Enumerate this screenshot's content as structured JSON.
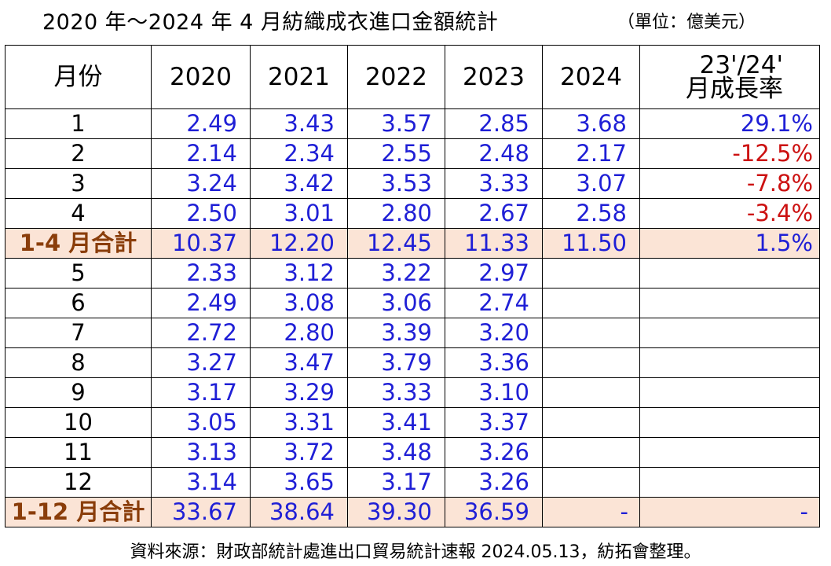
{
  "title": "2020 年～2024 年 4 月紡織成衣進口金額統計",
  "unit": "（單位：億美元）",
  "headers": {
    "month": "月份",
    "years": [
      "2020",
      "2021",
      "2022",
      "2023",
      "2024"
    ],
    "rate_line1": "23'/24'",
    "rate_line2": "月成長率"
  },
  "rows": [
    {
      "month": "1",
      "v": [
        "2.49",
        "3.43",
        "3.57",
        "2.85",
        "3.68"
      ],
      "rate": "29.1%"
    },
    {
      "month": "2",
      "v": [
        "2.14",
        "2.34",
        "2.55",
        "2.48",
        "2.17"
      ],
      "rate": "-12.5%"
    },
    {
      "month": "3",
      "v": [
        "3.24",
        "3.42",
        "3.53",
        "3.33",
        "3.07"
      ],
      "rate": "-7.8%"
    },
    {
      "month": "4",
      "v": [
        "2.50",
        "3.01",
        "2.80",
        "2.67",
        "2.58"
      ],
      "rate": "-3.4%"
    },
    {
      "month": "1-4 月合計",
      "v": [
        "10.37",
        "12.20",
        "12.45",
        "11.33",
        "11.50"
      ],
      "rate": "1.5%"
    },
    {
      "month": "5",
      "v": [
        "2.33",
        "3.12",
        "3.22",
        "2.97",
        ""
      ],
      "rate": ""
    },
    {
      "month": "6",
      "v": [
        "2.49",
        "3.08",
        "3.06",
        "2.74",
        ""
      ],
      "rate": ""
    },
    {
      "month": "7",
      "v": [
        "2.72",
        "2.80",
        "3.39",
        "3.20",
        ""
      ],
      "rate": ""
    },
    {
      "month": "8",
      "v": [
        "3.27",
        "3.47",
        "3.79",
        "3.36",
        ""
      ],
      "rate": ""
    },
    {
      "month": "9",
      "v": [
        "3.17",
        "3.29",
        "3.33",
        "3.10",
        ""
      ],
      "rate": ""
    },
    {
      "month": "10",
      "v": [
        "3.05",
        "3.31",
        "3.41",
        "3.37",
        ""
      ],
      "rate": ""
    },
    {
      "month": "11",
      "v": [
        "3.13",
        "3.72",
        "3.48",
        "3.26",
        ""
      ],
      "rate": ""
    },
    {
      "month": "12",
      "v": [
        "3.14",
        "3.65",
        "3.17",
        "3.26",
        ""
      ],
      "rate": ""
    },
    {
      "month": "1-12 月合計",
      "v": [
        "33.67",
        "38.64",
        "39.30",
        "36.59",
        "-"
      ],
      "rate": "-"
    }
  ],
  "source": "資料來源：財政部統計處進出口貿易統計速報 2024.05.13，紡拓會整理。",
  "colors": {
    "value_blue": "#1f1fd6",
    "negative_red": "#cc1111",
    "subtotal_bg": "#fbe4d6",
    "subtotal_text": "#8a3d0a"
  }
}
